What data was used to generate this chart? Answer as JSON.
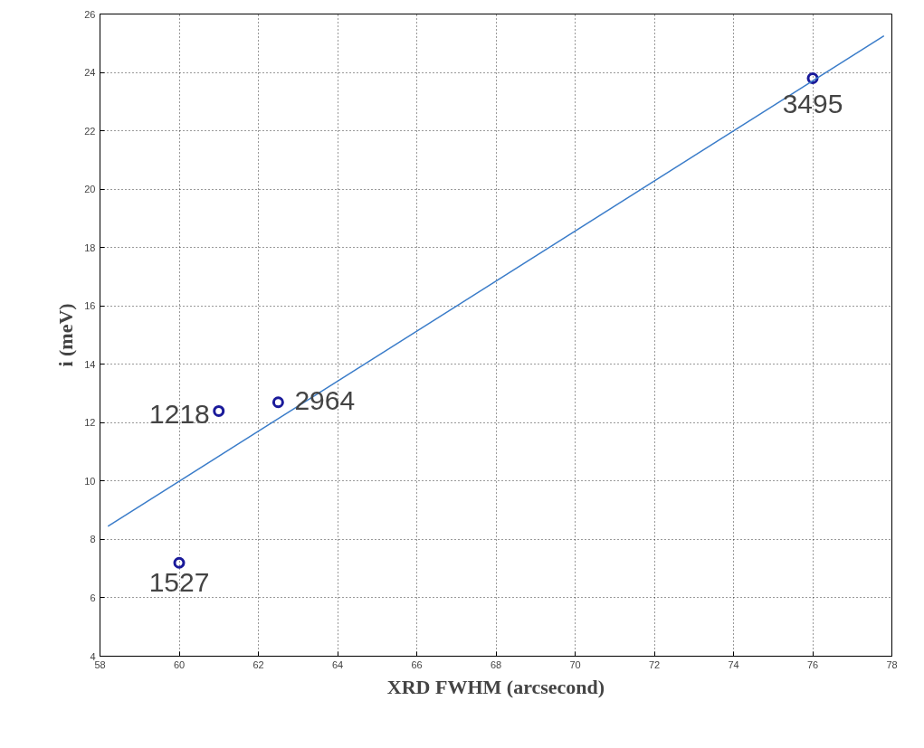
{
  "chart_data": {
    "type": "scatter",
    "xlabel": "XRD FWHM (arcsecond)",
    "ylabel": "i (meV)",
    "xlim": [
      58,
      78
    ],
    "ylim": [
      4,
      26
    ],
    "xticks": [
      58,
      60,
      62,
      64,
      66,
      68,
      70,
      72,
      74,
      76,
      78
    ],
    "yticks": [
      4,
      6,
      8,
      10,
      12,
      14,
      16,
      18,
      20,
      22,
      24,
      26
    ],
    "grid": true,
    "marker": "circle",
    "series": [
      {
        "color": "#1a1a9a",
        "x": [
          60,
          61,
          62.5,
          76
        ],
        "values": [
          7.2,
          12.4,
          12.7,
          23.8
        ]
      },
      {
        "type": "line",
        "color": "#3a7cc9",
        "x": [
          58.2,
          77.8
        ],
        "values": [
          8.45,
          25.25
        ],
        "marker": "none"
      }
    ],
    "annotations": [
      {
        "text": "1527",
        "x": 60,
        "y": 7.2
      },
      {
        "text": "1218",
        "x": 61,
        "y": 12.4
      },
      {
        "text": "2964",
        "x": 62.5,
        "y": 12.7
      },
      {
        "text": "3495",
        "x": 76,
        "y": 23.8
      }
    ]
  }
}
